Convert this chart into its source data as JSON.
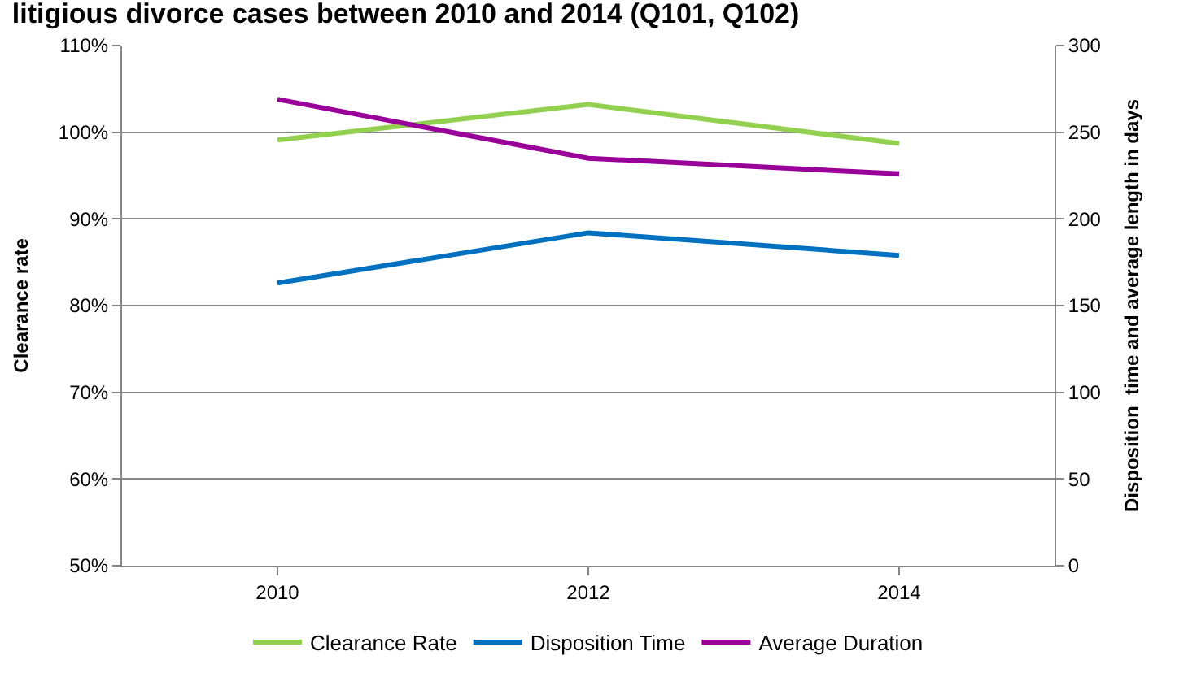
{
  "chart_data": {
    "type": "line",
    "title": "litigious divorce cases between 2010 and 2014 (Q101, Q102)",
    "ylabel": "Clearance rate",
    "y2label": "Disposition  time and average length in days",
    "categories": [
      "2010",
      "2012",
      "2014"
    ],
    "series": [
      {
        "name": "Clearance Rate",
        "color": "#92d050",
        "values": [
          99.1,
          103.2,
          98.7
        ]
      },
      {
        "name": "Disposition Time",
        "color": "#0070c0",
        "values": [
          163,
          192,
          179
        ],
        "axis": "y2"
      },
      {
        "name": "Average Duration",
        "color": "#990099",
        "values": [
          269,
          235,
          226
        ],
        "axis": "y2"
      }
    ],
    "ylim": [
      50,
      110
    ],
    "yticks": [
      {
        "value": 50,
        "label": "50%"
      },
      {
        "value": 60,
        "label": "60%"
      },
      {
        "value": 70,
        "label": "70%"
      },
      {
        "value": 80,
        "label": "80%"
      },
      {
        "value": 90,
        "label": "90%"
      },
      {
        "value": 100,
        "label": "100%"
      },
      {
        "value": 110,
        "label": "110%"
      }
    ],
    "y2lim": [
      0,
      300
    ],
    "y2ticks": [
      0,
      50,
      100,
      150,
      200,
      250,
      300
    ],
    "grid": "y",
    "legend": "bottom",
    "marker": "none",
    "line_style": "solid"
  }
}
